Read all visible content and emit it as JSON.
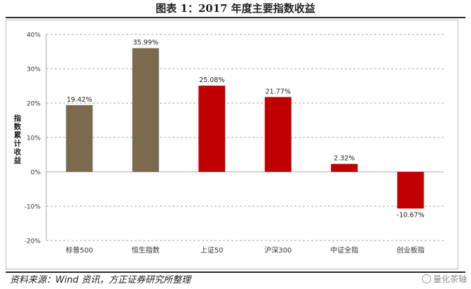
{
  "title": "图表 1：2017 年度主要指数收益",
  "source": "资料来源：Wind 资讯，方正证券研究所整理",
  "watermark": "量化茶轴",
  "chart_data": {
    "type": "bar",
    "ylabel": "指数累计收益",
    "categories": [
      "标普500",
      "恒生指数",
      "上证50",
      "沪深300",
      "中证全指",
      "创业板指"
    ],
    "values": [
      19.42,
      35.99,
      25.08,
      21.77,
      2.32,
      -10.67
    ],
    "data_labels": [
      "19.42%",
      "35.99%",
      "25.08%",
      "21.77%",
      "2.32%",
      "-10.67%"
    ],
    "bar_colors": [
      "#7b6a4e",
      "#7b6a4e",
      "#c00000",
      "#c00000",
      "#c00000",
      "#c00000"
    ],
    "ylim": [
      -20,
      40
    ],
    "yticks": [
      -20,
      -10,
      0,
      10,
      20,
      30,
      40
    ],
    "ytick_labels": [
      "-20%",
      "-10%",
      "0%",
      "10%",
      "20%",
      "30%",
      "40%"
    ],
    "grid": true,
    "legend": "none"
  }
}
